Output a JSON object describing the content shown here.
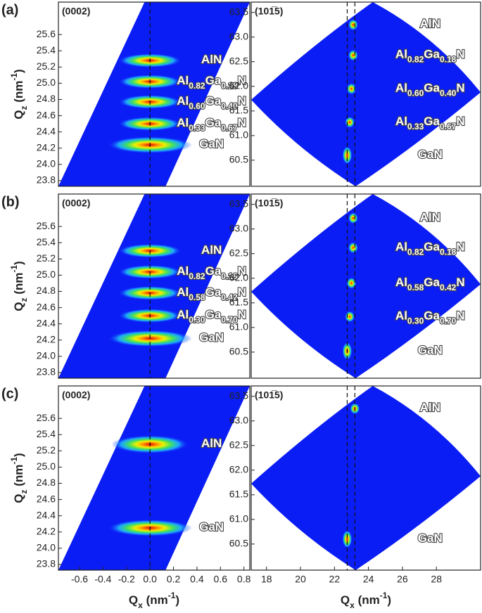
{
  "chart_data": [
    {
      "type": "heatmap",
      "panel_label": "(a)",
      "title": "(0002)",
      "ylabel": "Qz (nm-1)",
      "xlim": [
        -0.78,
        0.85
      ],
      "ylim": [
        23.73,
        26.0
      ],
      "yticks": [
        {
          "value": 23.8,
          "label": "23.8"
        },
        {
          "value": 24,
          "label": "24.0"
        },
        24.2,
        24.4,
        24.6,
        24.8,
        {
          "value": 25,
          "label": "25.0"
        },
        25.2,
        25.4,
        25.6
      ],
      "reference_lines": [
        0
      ],
      "peaks": {
        "x": [
          0,
          0,
          0,
          0,
          0
        ],
        "y": [
          25.28,
          25.02,
          24.77,
          24.5,
          24.24
        ],
        "labels": [
          "AlN",
          "Al0.82Ga0.18N",
          "Al0.60Ga0.40N",
          "Al0.33Ga0.67N",
          "GaN"
        ]
      }
    },
    {
      "type": "heatmap",
      "title": "(101̅5)",
      "xlim": [
        17.1,
        30.6
      ],
      "ylim": [
        59.97,
        63.71
      ],
      "yticks": [
        60.5,
        {
          "value": 61,
          "label": "61.0"
        },
        61.5,
        {
          "value": 62,
          "label": "62.0"
        },
        62.5,
        {
          "value": 63,
          "label": "63.0"
        },
        63.5
      ],
      "reference_lines": [
        22.75,
        23.2
      ],
      "peaks": {
        "x": [
          23.1,
          23.1,
          23.0,
          22.9,
          22.75
        ],
        "y": [
          63.25,
          62.63,
          61.95,
          61.27,
          60.6
        ],
        "labels": [
          "AlN",
          "Al0.82Ga0.18N",
          "Al0.60Ga0.40N",
          "Al0.33Ga0.67N",
          "GaN"
        ]
      }
    },
    {
      "type": "heatmap",
      "panel_label": "(b)",
      "title": "(0002)",
      "ylabel": "Qz (nm-1)",
      "xlim": [
        -0.78,
        0.85
      ],
      "ylim": [
        23.73,
        26.0
      ],
      "yticks": [
        {
          "value": 23.8,
          "label": "23.8"
        },
        {
          "value": 24,
          "label": "24.0"
        },
        24.2,
        24.4,
        24.6,
        24.8,
        {
          "value": 25,
          "label": "25.0"
        },
        25.2,
        25.4,
        25.6
      ],
      "reference_lines": [
        0
      ],
      "peaks": {
        "x": [
          0,
          0,
          0,
          0,
          0
        ],
        "y": [
          25.3,
          25.04,
          24.78,
          24.5,
          24.22
        ],
        "labels": [
          "AlN",
          "Al0.82Ga0.18N",
          "Al0.58Ga0.42N",
          "Al0.30Ga0.70N",
          "GaN"
        ]
      }
    },
    {
      "type": "heatmap",
      "title": "(101̅5)",
      "xlim": [
        17.1,
        30.6
      ],
      "ylim": [
        59.97,
        63.71
      ],
      "yticks": [
        60.5,
        {
          "value": 61,
          "label": "61.0"
        },
        61.5,
        {
          "value": 62,
          "label": "62.0"
        },
        62.5,
        {
          "value": 63,
          "label": "63.0"
        },
        63.5
      ],
      "reference_lines": [
        22.75,
        23.2
      ],
      "peaks": {
        "x": [
          23.1,
          23.1,
          23.0,
          22.9,
          22.75
        ],
        "y": [
          63.22,
          62.62,
          61.9,
          61.22,
          60.52
        ],
        "labels": [
          "AlN",
          "Al0.82Ga0.18N",
          "Al0.58Ga0.42N",
          "Al0.30Ga0.70N",
          "GaN"
        ]
      }
    },
    {
      "type": "heatmap",
      "panel_label": "(c)",
      "title": "(0002)",
      "ylabel": "Qz (nm-1)",
      "xlabel": "Qx (nm-1)",
      "xlim": [
        -0.78,
        0.85
      ],
      "ylim": [
        23.73,
        26.0
      ],
      "xticks": [
        -0.6,
        -0.4,
        -0.2,
        {
          "value": 0,
          "label": "0.0"
        },
        0.2,
        0.4,
        0.6,
        0.8
      ],
      "yticks": [
        {
          "value": 23.8,
          "label": "23.8"
        },
        {
          "value": 24,
          "label": "24.0"
        },
        24.2,
        24.4,
        24.6,
        24.8,
        {
          "value": 25,
          "label": "25.0"
        },
        25.2,
        25.4,
        25.6
      ],
      "reference_lines": [
        0
      ],
      "peaks": {
        "x": [
          0,
          0
        ],
        "y": [
          25.28,
          24.25
        ],
        "labels": [
          "AlN",
          "GaN"
        ]
      }
    },
    {
      "type": "heatmap",
      "title": "(101̅5)",
      "xlabel": "Qx (nm-1)",
      "xlim": [
        17.1,
        30.6
      ],
      "ylim": [
        59.97,
        63.71
      ],
      "xticks": [
        18,
        20,
        22,
        24,
        26,
        28
      ],
      "yticks": [
        60.5,
        {
          "value": 61,
          "label": "61.0"
        },
        61.5,
        {
          "value": 62,
          "label": "62.0"
        },
        62.5,
        {
          "value": 63,
          "label": "63.0"
        },
        63.5
      ],
      "reference_lines": [
        22.75,
        23.2
      ],
      "peaks": {
        "x": [
          23.2,
          22.75
        ],
        "y": [
          63.25,
          60.6
        ],
        "labels": [
          "AlN",
          "GaN"
        ]
      }
    }
  ]
}
